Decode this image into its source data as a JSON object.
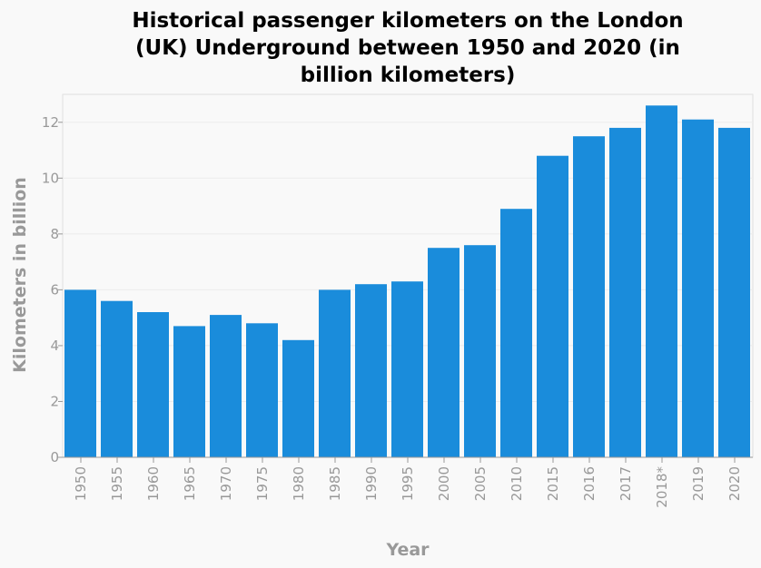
{
  "chart_data": {
    "type": "bar",
    "title_lines": [
      "Historical passenger kilometers on the London",
      "(UK) Underground between 1950 and 2020 (in",
      "billion kilometers)"
    ],
    "xlabel": "Year",
    "ylabel": "Kilometers in billion",
    "categories": [
      "1950",
      "1955",
      "1960",
      "1965",
      "1970",
      "1975",
      "1980",
      "1985",
      "1990",
      "1995",
      "2000",
      "2005",
      "2010",
      "2015",
      "2016",
      "2017",
      "2018*",
      "2019",
      "2020"
    ],
    "values": [
      6.0,
      5.6,
      5.2,
      4.7,
      5.1,
      4.8,
      4.2,
      6.0,
      6.2,
      6.3,
      7.5,
      7.6,
      8.9,
      10.8,
      11.5,
      11.8,
      12.6,
      12.1,
      11.8
    ],
    "ylim": [
      0,
      13
    ],
    "yticks": [
      0,
      2,
      4,
      6,
      8,
      10,
      12
    ],
    "grid": true,
    "bar_color": "#1a8cdb",
    "background_color": "#f9f9f9"
  }
}
